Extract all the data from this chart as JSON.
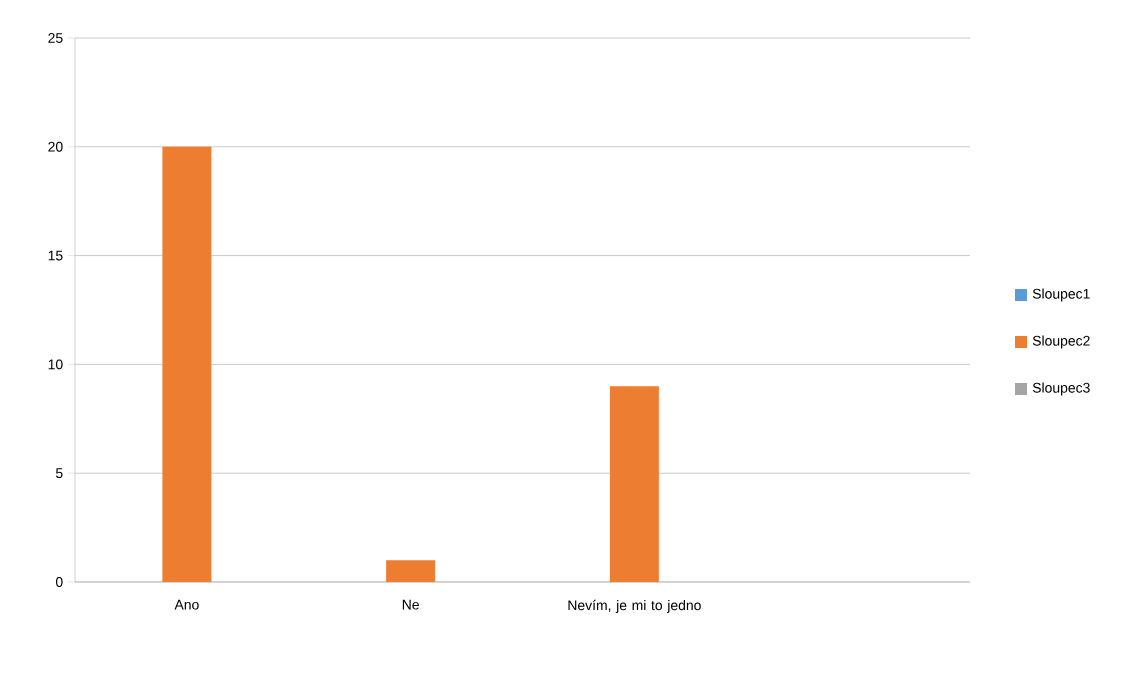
{
  "chart_data": {
    "type": "bar",
    "categories": [
      "Ano",
      "Ne",
      "Nevím, je mi to jedno",
      null
    ],
    "series": [
      {
        "name": "Sloupec1",
        "color": "#5b9bd5",
        "values": [
          null,
          null,
          null,
          null
        ]
      },
      {
        "name": "Sloupec2",
        "color": "#ed7d31",
        "values": [
          20,
          1,
          9,
          null
        ]
      },
      {
        "name": "Sloupec3",
        "color": "#a5a5a5",
        "values": [
          null,
          null,
          null,
          null
        ]
      }
    ],
    "ylim": [
      0,
      25
    ],
    "yticks": [
      0,
      5,
      10,
      15,
      20,
      25
    ],
    "grid": "y",
    "legend": "right"
  }
}
